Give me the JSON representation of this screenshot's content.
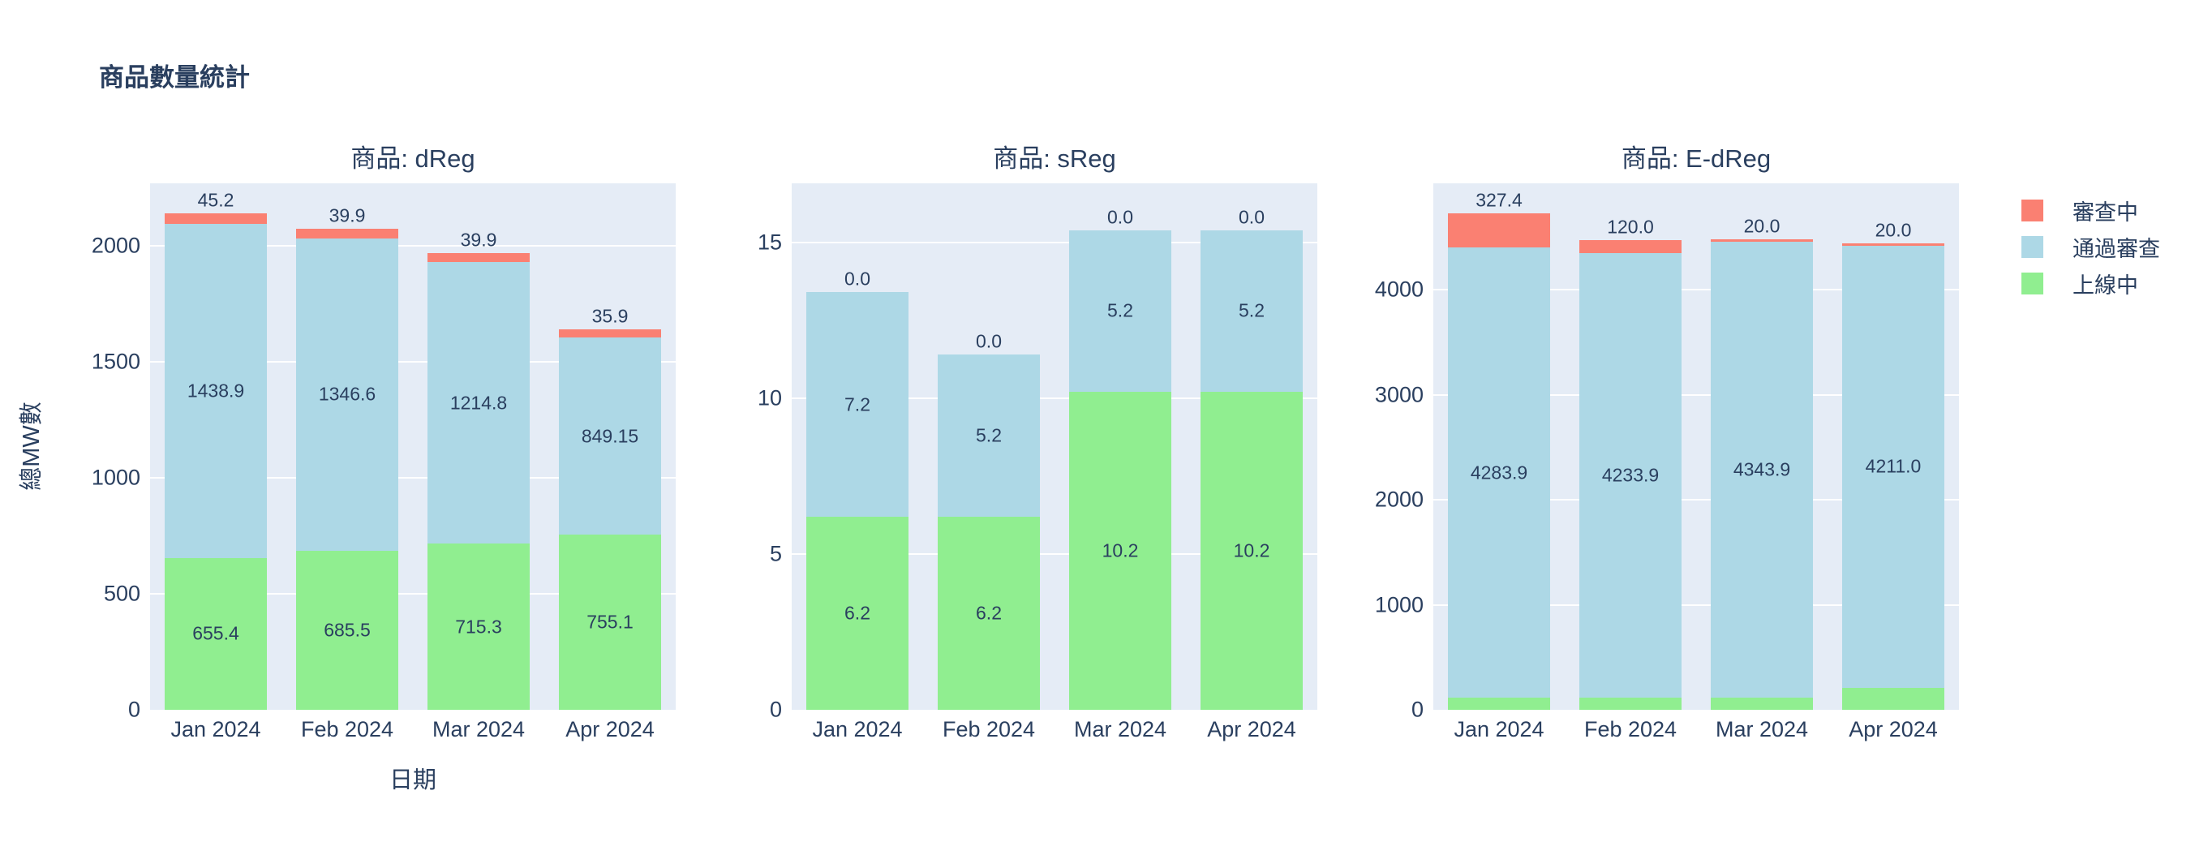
{
  "title": "商品數量統計",
  "colors": {
    "review_pending": "#FA8072",
    "review_passed": "#ADD8E6",
    "online": "#90EE90",
    "text": "#2a3f5f",
    "plot_background": "#E5ECF6",
    "gridline": "#ffffff",
    "paper_background": "#ffffff"
  },
  "axes": {
    "x_title": "日期",
    "y_title": "總MW數"
  },
  "legend": {
    "items": [
      {
        "label": "審查中",
        "color": "#FA8072"
      },
      {
        "label": "通過審查",
        "color": "#ADD8E6"
      },
      {
        "label": "上線中",
        "color": "#90EE90"
      }
    ]
  },
  "chart_data": [
    {
      "type": "bar",
      "title": "商品: dReg",
      "stacked": true,
      "categories": [
        "Jan 2024",
        "Feb 2024",
        "Mar 2024",
        "Apr 2024"
      ],
      "series": [
        {
          "name": "上線中",
          "color": "#90EE90",
          "values": [
            655.4,
            685.5,
            715.3,
            755.1
          ],
          "labels": [
            "655.4",
            "685.5",
            "715.3",
            "755.1"
          ]
        },
        {
          "name": "通過審查",
          "color": "#ADD8E6",
          "values": [
            1438.9,
            1346.6,
            1214.8,
            849.15
          ],
          "labels": [
            "1438.9",
            "1346.6",
            "1214.8",
            "849.15"
          ]
        },
        {
          "name": "審查中",
          "color": "#FA8072",
          "values": [
            45.2,
            39.9,
            39.9,
            35.9
          ],
          "labels": [
            "45.2",
            "39.9",
            "39.9",
            "35.9"
          ]
        }
      ],
      "xlabel": "日期",
      "ylabel": "總MW數",
      "ylim": [
        0,
        2269
      ],
      "ytick_values": [
        0,
        500,
        1000,
        1500,
        2000
      ],
      "ytick_labels": [
        "0",
        "500",
        "1000",
        "1500",
        "2000"
      ],
      "grid": true,
      "legend_position": "right"
    },
    {
      "type": "bar",
      "title": "商品: sReg",
      "stacked": true,
      "categories": [
        "Jan 2024",
        "Feb 2024",
        "Mar 2024",
        "Apr 2024"
      ],
      "series": [
        {
          "name": "上線中",
          "color": "#90EE90",
          "values": [
            6.2,
            6.2,
            10.2,
            10.2
          ],
          "labels": [
            "6.2",
            "6.2",
            "10.2",
            "10.2"
          ]
        },
        {
          "name": "通過審查",
          "color": "#ADD8E6",
          "values": [
            7.2,
            5.2,
            5.2,
            5.2
          ],
          "labels": [
            "7.2",
            "5.2",
            "5.2",
            "5.2"
          ]
        },
        {
          "name": "審查中",
          "color": "#FA8072",
          "values": [
            0,
            0,
            0,
            0
          ],
          "labels": [
            "0.0",
            "0.0",
            "0.0",
            "0.0"
          ]
        }
      ],
      "xlabel": "",
      "ylabel": "",
      "ylim": [
        0,
        16.9
      ],
      "ytick_values": [
        0,
        5,
        10,
        15
      ],
      "ytick_labels": [
        "0",
        "5",
        "10",
        "15"
      ],
      "grid": true,
      "legend_position": "right"
    },
    {
      "type": "bar",
      "title": "商品: E-dReg",
      "stacked": true,
      "categories": [
        "Jan 2024",
        "Feb 2024",
        "Mar 2024",
        "Apr 2024"
      ],
      "series": [
        {
          "name": "上線中",
          "color": "#90EE90",
          "values": [
            116.0,
            116.0,
            116.0,
            207.9
          ],
          "labels": [
            "116.0",
            "116.0",
            "116.0",
            "207.9"
          ]
        },
        {
          "name": "通過審查",
          "color": "#ADD8E6",
          "values": [
            4283.9,
            4233.9,
            4343.9,
            4211.0
          ],
          "labels": [
            "4283.9",
            "4233.9",
            "4343.9",
            "4211.0"
          ]
        },
        {
          "name": "審查中",
          "color": "#FA8072",
          "values": [
            327.4,
            120.0,
            20.0,
            20.0
          ],
          "labels": [
            "327.4",
            "120.0",
            "20.0",
            "20.0"
          ]
        }
      ],
      "xlabel": "",
      "ylabel": "",
      "ylim": [
        0,
        5013
      ],
      "ytick_values": [
        0,
        1000,
        2000,
        3000,
        4000
      ],
      "ytick_labels": [
        "0",
        "1000",
        "2000",
        "3000",
        "4000"
      ],
      "grid": true,
      "legend_position": "right"
    }
  ]
}
